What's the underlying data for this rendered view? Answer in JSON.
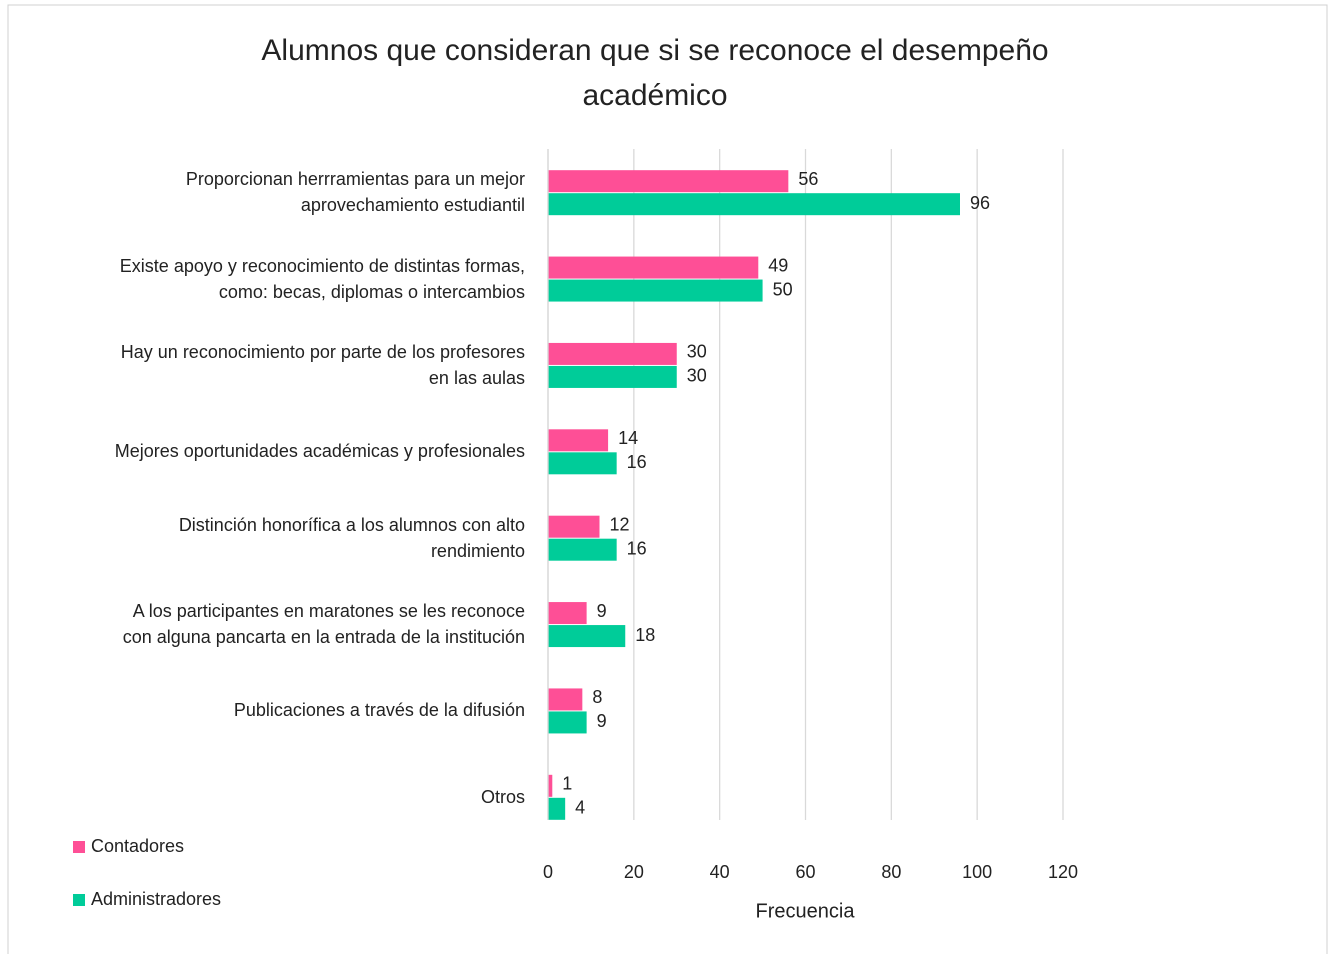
{
  "chart_data": {
    "type": "barh",
    "title": "Alumnos que consideran que si se reconoce el desempeño académico",
    "xlabel": "Frecuencia",
    "categories": [
      "Proporcionan herrramientas para un mejor\naprovechamiento estudiantil",
      "Existe apoyo y reconocimiento de distintas formas,\ncomo: becas, diplomas o intercambios",
      "Hay un reconocimiento por parte de los profesores\nen las aulas",
      "Mejores oportunidades académicas y profesionales",
      "Distinción honorífica a los alumnos con alto\nrendimiento",
      "A los participantes en maratones se les reconoce\ncon alguna pancarta en la entrada de la institución",
      "Publicaciones a través de la difusión",
      "Otros"
    ],
    "series": [
      {
        "name": "Contadores",
        "color": "#fe4f96",
        "values": [
          56,
          49,
          30,
          14,
          12,
          9,
          8,
          1
        ]
      },
      {
        "name": "Administradores",
        "color": "#00cc99",
        "values": [
          96,
          50,
          30,
          16,
          16,
          18,
          9,
          4
        ]
      }
    ],
    "xlim": [
      0,
      120
    ],
    "xticks": [
      0,
      20,
      40,
      60,
      80,
      100,
      120
    ],
    "grid": true,
    "legend": "bottom-left"
  }
}
